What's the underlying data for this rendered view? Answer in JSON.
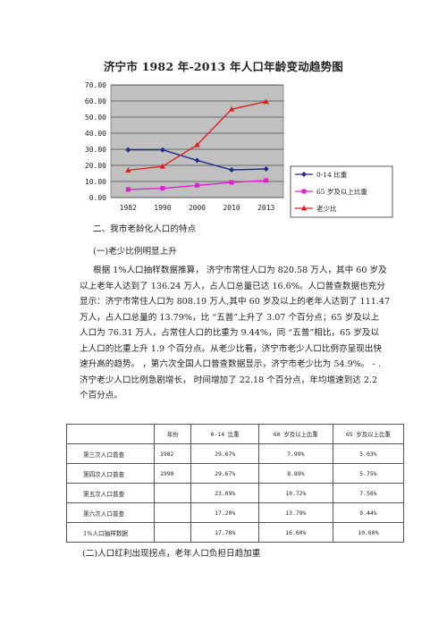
{
  "chart_data": {
    "type": "line",
    "title": "济宁市 1982 年-2013 年人口年龄变动趋势图",
    "categories": [
      "1982",
      "1990",
      "2000",
      "2010",
      "2013"
    ],
    "ylim": [
      0,
      70
    ],
    "y_ticks": [
      "0.00",
      "10.00",
      "20.00",
      "30.00",
      "40.00",
      "50.00",
      "60.00",
      "70.00"
    ],
    "grid": true,
    "legend_position": "right",
    "series": [
      {
        "name": "0-14 比重",
        "color": "#1f2a8c",
        "marker": "diamond",
        "values": [
          29.67,
          29.67,
          23.09,
          17.2,
          17.78
        ]
      },
      {
        "name": "65 岁及以上比重",
        "color": "#e020d0",
        "marker": "square",
        "values": [
          5.03,
          5.75,
          7.56,
          9.44,
          10.6
        ]
      },
      {
        "name": "老少比",
        "color": "#e02020",
        "marker": "triangle",
        "values": [
          16.95,
          19.37,
          32.74,
          54.9,
          59.6
        ]
      }
    ]
  },
  "section": {
    "heading": "二、我市老龄化人口的特点",
    "subheading": "(一)老少比例明显上升",
    "paragraph_lines": [
      "根据 1%人口抽样数据推算， 济宁市常住人口为 820.58 万人，其中 60 岁及",
      "以上老年人达到了 136.24 万人，占人口总量已达 16.6%。人口普查数据也充分",
      "显示：济宁市常住人口为 808.19 万人,其中 60 岁及以上的老年人达到了 111.47",
      "万人，占人口总量的 13.79%，比 “五普”上升了 3.07 个百分点；65 岁及以上",
      "人口为 76.31 万人，占常住人口的比重为 9.44%，同 “五普”相比，65 岁及以",
      "上人口的比重上升 1.9 个百分点。从老少比看，济宁市老少人口比例亦呈现出快",
      "速升高的趋势。 ，第六次全国人口普查数据显示，济宁市老少比为 54.9%。 - .",
      "济宁老少人口比例急剧增长， 时间增加了 22.18 个百分点，年均增速到达 2.2",
      "个百分点。"
    ]
  },
  "table": {
    "headers": [
      "",
      "年份",
      "0-14 比重",
      "60 岁及以上比重",
      "65 岁及以上比重"
    ],
    "rows": [
      [
        "第三次人口普查",
        "1982",
        "29.67%",
        "7.99%",
        "5.03%"
      ],
      [
        "第四次人口普查",
        "1990",
        "29.67%",
        "8.89%",
        "5.75%"
      ],
      [
        "第五次人口普查",
        "",
        "23.09%",
        "10.72%",
        "7.56%"
      ],
      [
        "第六次人口普查",
        "",
        "17.20%",
        "13.79%",
        "9.44%"
      ],
      [
        "1%人口抽样数据",
        "",
        "17.78%",
        "16.60%",
        "10.60%"
      ]
    ]
  },
  "footer_heading": "(二)人口红利出现拐点，老年人口负担日趋加重"
}
